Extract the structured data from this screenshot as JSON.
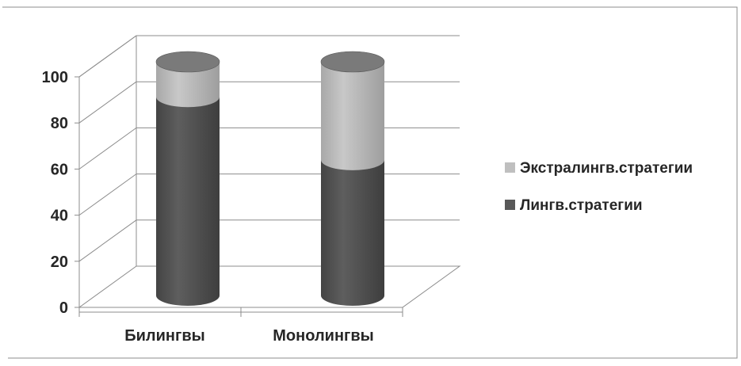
{
  "chart_data": {
    "type": "bar",
    "stacked": true,
    "style": "3d-cylinder",
    "categories": [
      "Билингвы",
      "Монолингвы"
    ],
    "series": [
      {
        "name": "Лингв.стратегии",
        "values": [
          85,
          58
        ],
        "color": "#595959"
      },
      {
        "name": "Экстралингв.стратегии",
        "values": [
          15,
          42
        ],
        "color": "#bfbfbf"
      }
    ],
    "yticks": [
      "0",
      "20",
      "40",
      "60",
      "80",
      "100"
    ],
    "ylim": [
      0,
      100
    ],
    "grid": true,
    "legend": "right"
  }
}
